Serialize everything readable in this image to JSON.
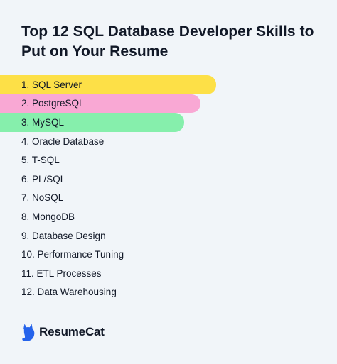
{
  "title": "Top 12 SQL Database Developer Skills to Put on Your Resume",
  "skills": [
    {
      "label": "1. SQL Server",
      "color": "#fde047"
    },
    {
      "label": "2. PostgreSQL",
      "color": "#f9a8d4"
    },
    {
      "label": "3. MySQL",
      "color": "#86efac"
    },
    {
      "label": "4. Oracle Database"
    },
    {
      "label": "5. T-SQL"
    },
    {
      "label": "6. PL/SQL"
    },
    {
      "label": "7. NoSQL"
    },
    {
      "label": "8. MongoDB"
    },
    {
      "label": "9. Database Design"
    },
    {
      "label": "10. Performance Tuning"
    },
    {
      "label": "11. ETL Processes"
    },
    {
      "label": "12. Data Warehousing"
    }
  ],
  "brand": {
    "name": "ResumeCat",
    "icon": "cat-icon",
    "color": "#2563eb"
  }
}
